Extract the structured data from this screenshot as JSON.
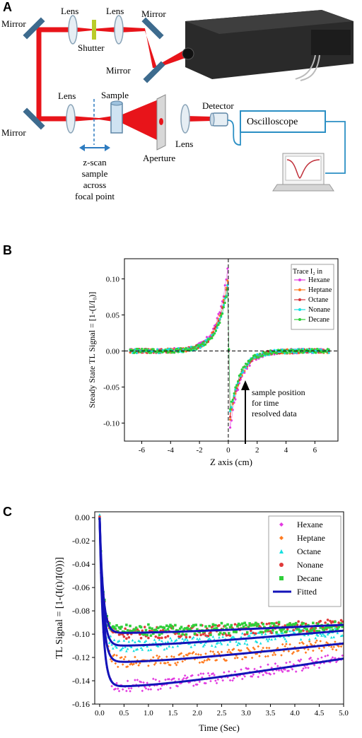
{
  "panel_a": {
    "label": "A",
    "labels": {
      "mirror_tl": "Mirror",
      "lens1": "Lens",
      "lens2": "Lens",
      "mirror_tr": "Mirror",
      "shutter": "Shutter",
      "mirror_mid": "Mirror",
      "mirror_bl": "Mirror",
      "lens3": "Lens",
      "sample": "Sample",
      "detector": "Detector",
      "aperture": "Aperture",
      "lens4": "Lens",
      "oscilloscope": "Oscilloscope",
      "zscan_line1": "z-scan",
      "zscan_line2": "sample",
      "zscan_line3": "across",
      "zscan_line4": "focal point"
    },
    "colors": {
      "beam": "#e8141a",
      "mirror": "#3d6b8e",
      "cable": "#2b8fc4",
      "arrow": "#2e7cc0"
    }
  },
  "panel_b": {
    "label": "B",
    "annotation": [
      "sample position",
      "for time",
      "resolved data"
    ],
    "chart_data": {
      "type": "scatter",
      "xlabel": "Z axis (cm)",
      "ylabel": "Steady State TL Signal = [1-(I/I₀)]",
      "xlim": [
        -7.2,
        7.6
      ],
      "ylim": [
        -0.125,
        0.128
      ],
      "xticks": [
        "-6",
        "-4",
        "-2",
        "0",
        "2",
        "4",
        "6"
      ],
      "yticks": [
        "0.10",
        "0.05",
        "0.00",
        "-0.05",
        "-0.10"
      ],
      "legend_title": "Trace I₂ in",
      "legend_position": "top-right",
      "series": [
        {
          "name": "Hexane",
          "color": "#e23ae0",
          "peak": 0.108,
          "trough": -0.113
        },
        {
          "name": "Heptane",
          "color": "#ff7a1f",
          "peak": 0.094,
          "trough": -0.1
        },
        {
          "name": "Octane",
          "color": "#d6333b",
          "peak": 0.09,
          "trough": -0.095
        },
        {
          "name": "Nonane",
          "color": "#16dfe0",
          "peak": 0.086,
          "trough": -0.092
        },
        {
          "name": "Decane",
          "color": "#2fcf3a",
          "peak": 0.083,
          "trough": -0.088
        }
      ]
    }
  },
  "panel_c": {
    "label": "C",
    "chart_data": {
      "type": "scatter",
      "xlabel": "Time (Sec)",
      "ylabel": "TL Signal = [1-(I(t)/I(0))]",
      "xlim": [
        -0.1,
        5.0
      ],
      "ylim": [
        -0.16,
        0.005
      ],
      "xticks": [
        "0.0",
        "0.5",
        "1.0",
        "1.5",
        "2.0",
        "2.5",
        "3.0",
        "3.5",
        "4.0",
        "4.5",
        "5.0"
      ],
      "yticks": [
        "0.00",
        "-0.02",
        "-0.04",
        "-0.06",
        "-0.08",
        "-0.10",
        "-0.12",
        "-0.14",
        "-0.16"
      ],
      "legend_position": "top-right",
      "series": [
        {
          "name": "Hexane",
          "color": "#e23ae0",
          "marker": "diamond",
          "min": -0.145,
          "end": -0.121
        },
        {
          "name": "Heptane",
          "color": "#ff7a1f",
          "marker": "diamond",
          "min": -0.124,
          "end": -0.108
        },
        {
          "name": "Octane",
          "color": "#16dfe0",
          "marker": "triangle",
          "min": -0.11,
          "end": -0.097
        },
        {
          "name": "Nonane",
          "color": "#e03a3a",
          "marker": "circle",
          "min": -0.099,
          "end": -0.092
        },
        {
          "name": "Decane",
          "color": "#2fcf3a",
          "marker": "square",
          "min": -0.097,
          "end": -0.093
        }
      ],
      "fit": {
        "name": "Fitted",
        "color": "#1313b8"
      }
    }
  }
}
